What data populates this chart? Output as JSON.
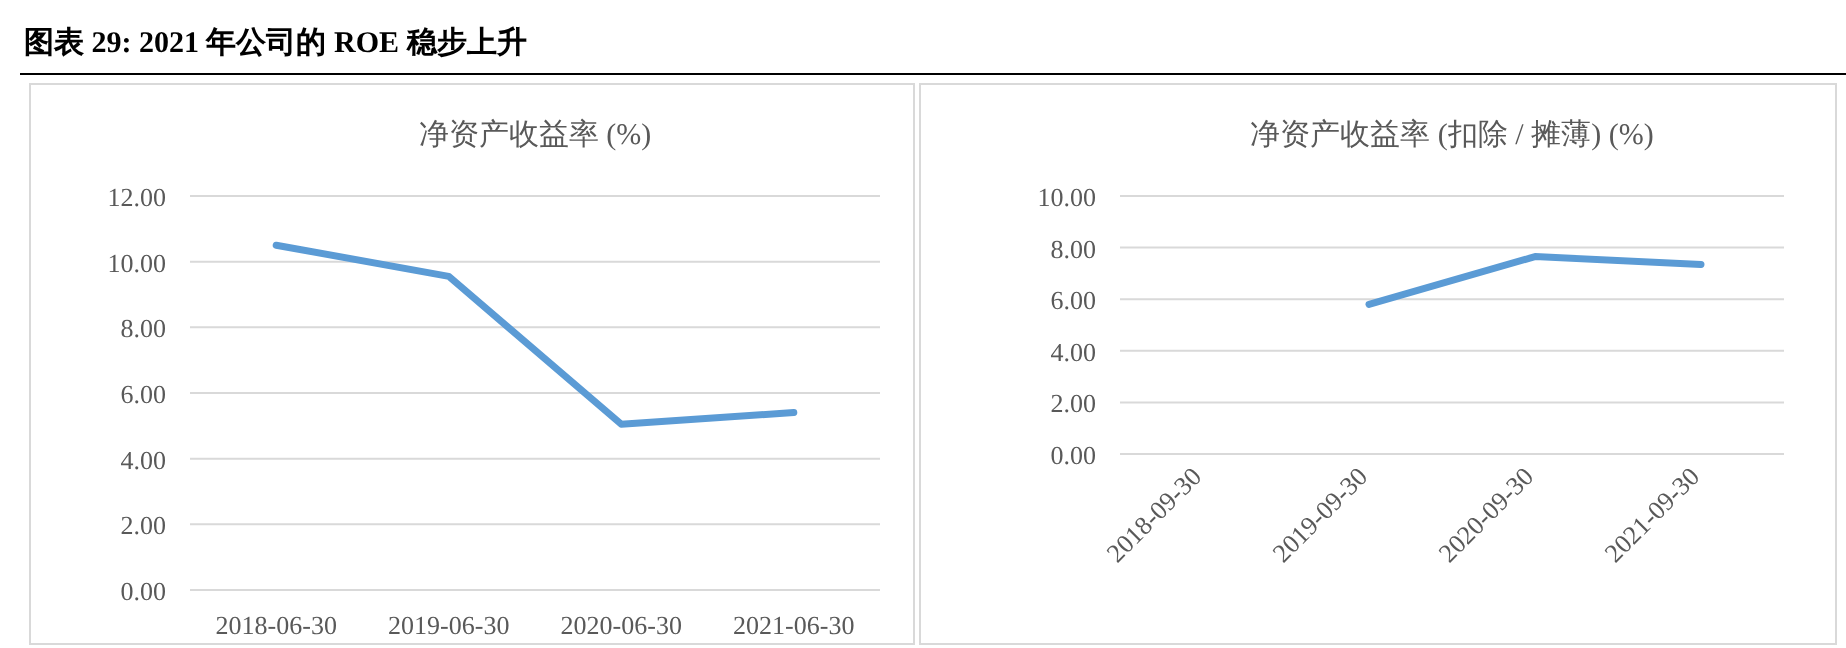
{
  "chart_data": [
    {
      "type": "line",
      "title": "净资产收益率 (%)",
      "annotations": [
        "图表 29:  2021 年公司的 ROE 稳步上升"
      ],
      "categories": [
        "2018-06-30",
        "2019-06-30",
        "2020-06-30",
        "2021-06-30"
      ],
      "values": [
        10.5,
        9.55,
        5.05,
        5.4
      ],
      "color": "#5b9bd5",
      "ylim": [
        0,
        12
      ],
      "yticks": [
        {
          "value": 0,
          "label": "0.00"
        },
        {
          "value": 2,
          "label": "2.00"
        },
        {
          "value": 4,
          "label": "4.00"
        },
        {
          "value": 6,
          "label": "6.00"
        },
        {
          "value": 8,
          "label": "8.00"
        },
        {
          "value": 10,
          "label": "10.00"
        },
        {
          "value": 12,
          "label": "12.00"
        }
      ],
      "grid": "y"
    },
    {
      "type": "line",
      "title": "净资产收益率 (扣除 / 摊薄) (%)",
      "categories": [
        "2018-09-30",
        "2019-09-30",
        "2020-09-30",
        "2021-09-30"
      ],
      "values": [
        null,
        5.8,
        7.65,
        7.35
      ],
      "color": "#5b9bd5",
      "ylim": [
        0,
        10
      ],
      "yticks": [
        {
          "value": 0,
          "label": "0.00"
        },
        {
          "value": 2,
          "label": "2.00"
        },
        {
          "value": 4,
          "label": "4.00"
        },
        {
          "value": 6,
          "label": "6.00"
        },
        {
          "value": 8,
          "label": "8.00"
        },
        {
          "value": 10,
          "label": "10.00"
        }
      ],
      "grid": "y"
    }
  ]
}
